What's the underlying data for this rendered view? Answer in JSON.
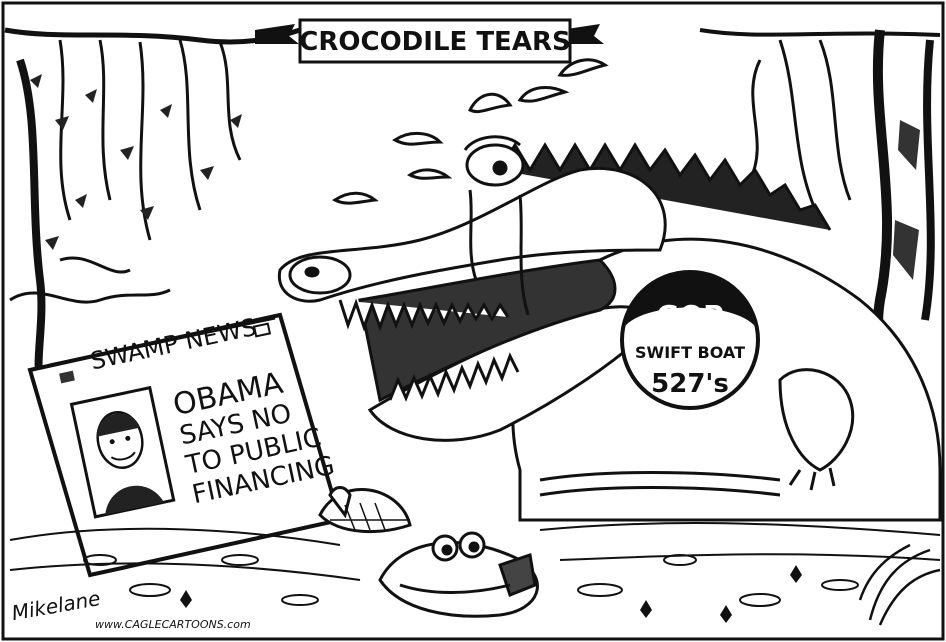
{
  "cartoon": {
    "title_banner": "CROCODILE TEARS",
    "newspaper": {
      "masthead": "SWAMP NEWS",
      "headline_lines": [
        "OBAMA",
        "SAYS NO",
        "TO PUBLIC",
        "FINANCING"
      ]
    },
    "crocodile_badge": {
      "line1": "GOP",
      "line2": "SWIFT BOAT",
      "line3": "527's"
    },
    "signature": "Mikelane",
    "website": "www.CAGLECARTOONS.com"
  }
}
